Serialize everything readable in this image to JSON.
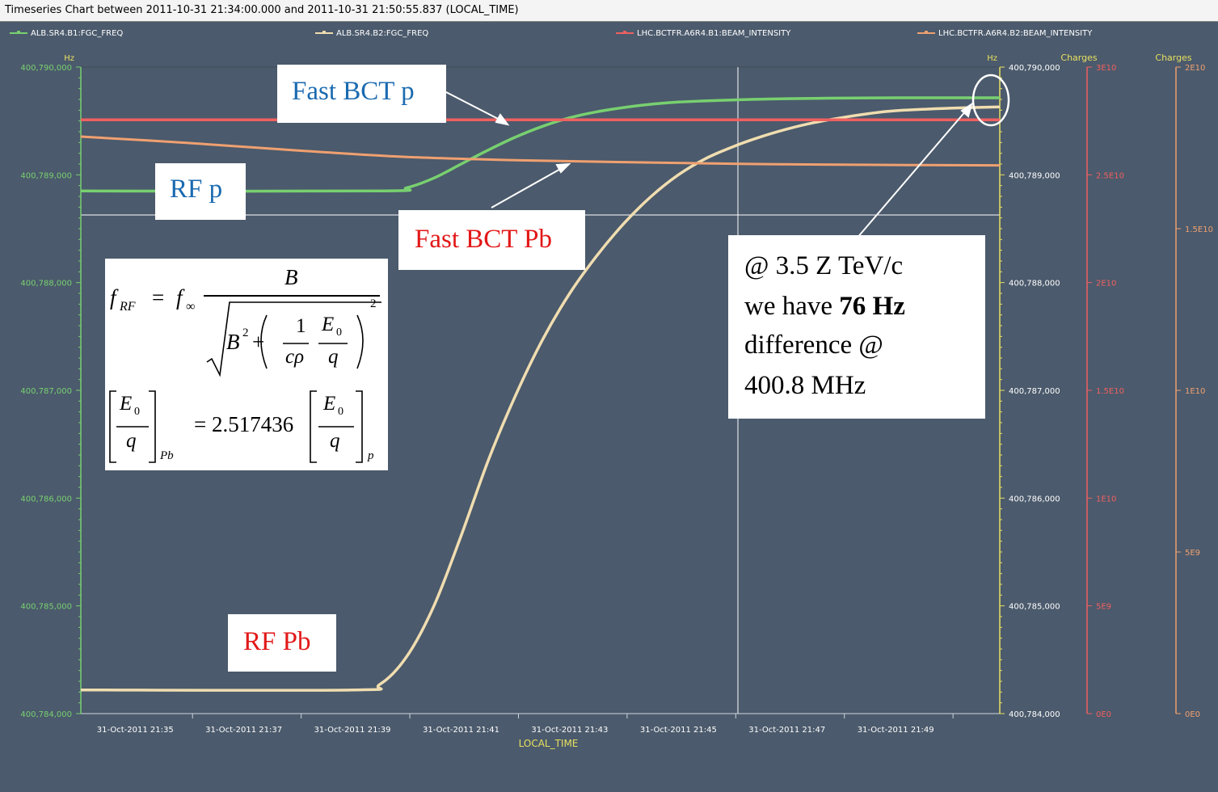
{
  "window": {
    "title": "Timeseries Chart between 2011-10-31 21:34:00.000 and 2011-10-31 21:50:55.837 (LOCAL_TIME)"
  },
  "legend": [
    {
      "label": "ALB.SR4.B1:FGC_FREQ",
      "color": "#78d070"
    },
    {
      "label": "ALB.SR4.B2:FGC_FREQ",
      "color": "#f0ddb0"
    },
    {
      "label": "LHC.BCTFR.A6R4.B1:BEAM_INTENSITY",
      "color": "#f06060"
    },
    {
      "label": "LHC.BCTFR.A6R4.B2:BEAM_INTENSITY",
      "color": "#f0a070"
    }
  ],
  "colors": {
    "background": "#4b5a6c",
    "grid": "#9aa4b0",
    "freq_b1": "#78d070",
    "freq_b2": "#f0ddb0",
    "int_b1": "#f06060",
    "int_b2": "#f0a070",
    "left_axis": "#78d070",
    "right_axis": "#e8e060"
  },
  "annotations": {
    "fast_bct_p": "Fast BCT p",
    "rf_p": "RF p",
    "fast_bct_pb": "Fast BCT Pb",
    "rf_pb": "RF Pb",
    "note_line1": "@ 3.5 Z TeV/c",
    "note_line2_pre": "we have ",
    "note_line2_bold": "76 Hz",
    "note_line3": "difference @",
    "note_line4": "400.8 MHz"
  },
  "formula": {
    "f_rf": "f",
    "sub_rf": "RF",
    "equals": "=",
    "f_inf": "f",
    "sub_inf": "∞",
    "B": "B",
    "B2": "B",
    "sq": "2",
    "plus": "+",
    "one": "1",
    "c_rho": "cρ",
    "E0": "E",
    "zero": "0",
    "q": "q",
    "pow2": "2",
    "sub_pb": "Pb",
    "coef": "= 2.517436",
    "sub_p": "p"
  },
  "chart_data": {
    "type": "line",
    "xlabel": "LOCAL_TIME",
    "x_ticks": [
      "31-Oct-2011 21:35",
      "31-Oct-2011 21:37",
      "31-Oct-2011 21:39",
      "31-Oct-2011 21:41",
      "31-Oct-2011 21:43",
      "31-Oct-2011 21:45",
      "31-Oct-2011 21:47",
      "31-Oct-2011 21:49"
    ],
    "x_range": [
      "2011-10-31 21:34:00",
      "2011-10-31 21:50:55"
    ],
    "left_axis": {
      "unit": "Hz",
      "range": [
        400784000,
        400790000
      ],
      "ticks": [
        "400,784,000",
        "400,785,000",
        "400,786,000",
        "400,787,000",
        "400,788,000",
        "400,789,000",
        "400,790,000"
      ]
    },
    "right_axis_hz": {
      "unit": "Hz",
      "range": [
        400784000,
        400790000
      ],
      "ticks": [
        "400,784,000",
        "400,785,000",
        "400,786,000",
        "400,787,000",
        "400,788,000",
        "400,789,000",
        "400,790,000"
      ]
    },
    "charges_b1_axis": {
      "unit": "Charges",
      "range": [
        0,
        30000000000
      ],
      "ticks": [
        "0E0",
        "5E9",
        "1E10",
        "1.5E10",
        "2E10",
        "2.5E10",
        "3E10"
      ]
    },
    "charges_b2_axis": {
      "unit": "Charges",
      "range": [
        0,
        20000000000
      ],
      "ticks": [
        "0E0",
        "5E9",
        "1E10",
        "1.5E10",
        "2E10"
      ]
    },
    "series": [
      {
        "name": "ALB.SR4.B1:FGC_FREQ",
        "axis": "hz",
        "points": [
          [
            "21:34:00",
            400788850
          ],
          [
            "21:39:30",
            400788850
          ],
          [
            "21:40:00",
            400788880
          ],
          [
            "21:40:30",
            400788970
          ],
          [
            "21:41:00",
            400789100
          ],
          [
            "21:41:30",
            400789230
          ],
          [
            "21:42:00",
            400789350
          ],
          [
            "21:42:30",
            400789450
          ],
          [
            "21:43:00",
            400789530
          ],
          [
            "21:43:30",
            400789585
          ],
          [
            "21:44:00",
            400789625
          ],
          [
            "21:44:30",
            400789655
          ],
          [
            "21:45:00",
            400789675
          ],
          [
            "21:46:00",
            400789695
          ],
          [
            "21:47:00",
            400789707
          ],
          [
            "21:48:00",
            400789712
          ],
          [
            "21:49:00",
            400789715
          ],
          [
            "21:50:55",
            400789715
          ]
        ]
      },
      {
        "name": "ALB.SR4.B2:FGC_FREQ",
        "axis": "hz",
        "points": [
          [
            "21:34:00",
            400784220
          ],
          [
            "21:39:00",
            400784220
          ],
          [
            "21:39:30",
            400784270
          ],
          [
            "21:40:00",
            400784530
          ],
          [
            "21:40:30",
            400785000
          ],
          [
            "21:41:00",
            400785650
          ],
          [
            "21:41:30",
            400786350
          ],
          [
            "21:42:00",
            400786950
          ],
          [
            "21:42:30",
            400787470
          ],
          [
            "21:43:00",
            400787900
          ],
          [
            "21:43:30",
            400788250
          ],
          [
            "21:44:00",
            400788550
          ],
          [
            "21:44:30",
            400788800
          ],
          [
            "21:45:00",
            400789000
          ],
          [
            "21:45:30",
            400789150
          ],
          [
            "21:46:00",
            400789260
          ],
          [
            "21:46:30",
            400789350
          ],
          [
            "21:47:00",
            400789425
          ],
          [
            "21:47:30",
            400789485
          ],
          [
            "21:48:00",
            400789530
          ],
          [
            "21:48:30",
            400789568
          ],
          [
            "21:49:00",
            400789595
          ],
          [
            "21:50:00",
            400789618
          ],
          [
            "21:50:55",
            400789630
          ]
        ]
      },
      {
        "name": "LHC.BCTFR.A6R4.B1:BEAM_INTENSITY",
        "axis": "charges_b1",
        "points": [
          [
            "21:34:00",
            27550000000
          ],
          [
            "21:50:55",
            27550000000
          ]
        ]
      },
      {
        "name": "LHC.BCTFR.A6R4.B2:BEAM_INTENSITY",
        "axis": "charges_b2",
        "points": [
          [
            "21:34:00",
            17850000000
          ],
          [
            "21:36:00",
            17650000000
          ],
          [
            "21:38:00",
            17420000000
          ],
          [
            "21:40:00",
            17220000000
          ],
          [
            "21:42:00",
            17120000000
          ],
          [
            "21:44:00",
            17060000000
          ],
          [
            "21:46:00",
            17010000000
          ],
          [
            "21:48:00",
            16980000000
          ],
          [
            "21:50:55",
            16960000000
          ]
        ]
      }
    ]
  }
}
